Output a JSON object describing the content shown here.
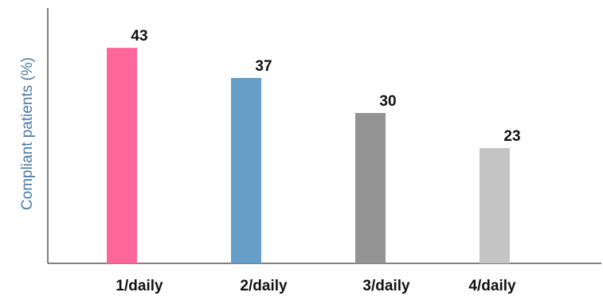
{
  "chart_data": {
    "type": "bar",
    "categories": [
      "1/daily",
      "2/daily",
      "3/daily",
      "4/daily"
    ],
    "values": [
      43,
      37,
      30,
      23
    ],
    "data_labels": [
      "43",
      "37",
      "30",
      "23"
    ],
    "colors": [
      "#ff6699",
      "#659ec7",
      "#939393",
      "#c4c4c4"
    ],
    "title": "",
    "xlabel": "",
    "ylabel": "Compliant patients (%)",
    "ylim": [
      0,
      50
    ],
    "grid": false,
    "legend": "none"
  }
}
